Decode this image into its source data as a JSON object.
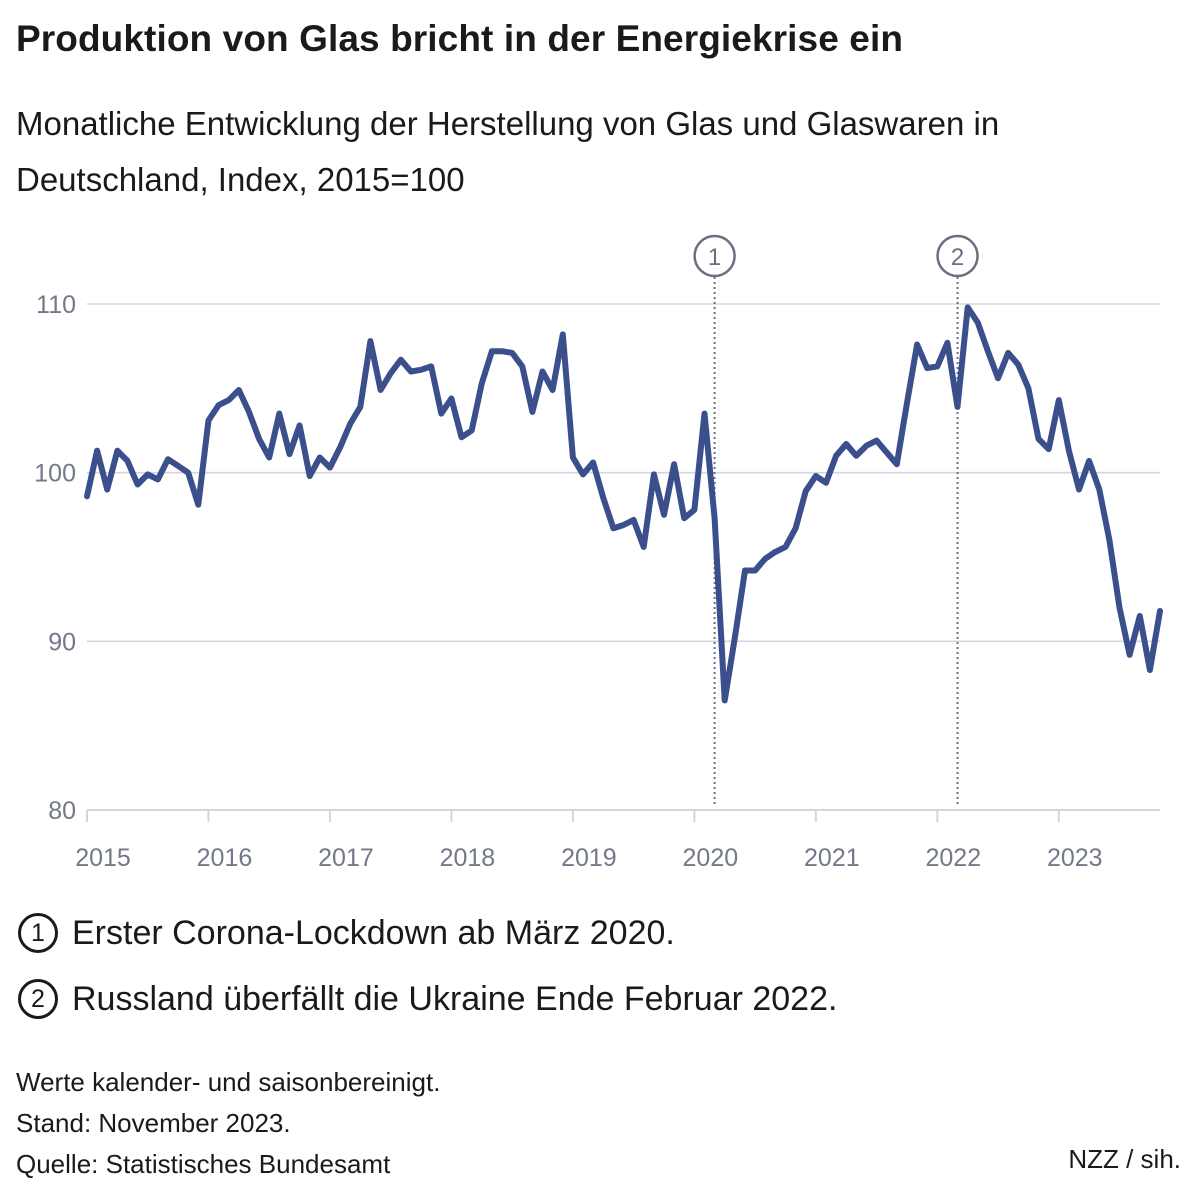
{
  "header": {
    "title": "Produktion von Glas bricht in der Energiekrise ein",
    "subtitle": "Monatliche Entwicklung der Herstellung von Glas und Glaswaren in Deutschland, Index, 2015=100"
  },
  "notes": [
    {
      "marker": "1",
      "text": "Erster Corona-Lockdown ab März 2020."
    },
    {
      "marker": "2",
      "text": "Russland überfällt die Ukraine Ende Februar 2022."
    }
  ],
  "footer": {
    "line1": "Werte kalender- und saisonbereinigt.",
    "line2": "Stand: November 2023.",
    "line3": "Quelle: Statistisches Bundesamt",
    "credit": "NZZ / sih."
  },
  "colors": {
    "line": "#3b4f8c",
    "grid": "#d4d6de",
    "axis_text": "#73788a",
    "annotation": "#6b6f80"
  },
  "chart_data": {
    "type": "line",
    "title": "Produktion von Glas bricht in der Energiekrise ein",
    "ylabel": "",
    "xlabel": "",
    "ylim": [
      80,
      110
    ],
    "y_ticks": [
      80,
      90,
      100,
      110
    ],
    "x_ticks": [
      "2015",
      "2016",
      "2017",
      "2018",
      "2019",
      "2020",
      "2021",
      "2022",
      "2023"
    ],
    "x_start": "2015-01",
    "x_end": "2023-11",
    "grid": true,
    "annotations": [
      {
        "label": "1",
        "date": "2020-03"
      },
      {
        "label": "2",
        "date": "2022-03"
      }
    ],
    "series": [
      {
        "values": [
          98.6,
          101.3,
          99.0,
          101.3,
          100.7,
          99.3,
          99.9,
          99.6,
          100.8,
          100.4,
          100.0,
          98.1,
          103.1,
          104.0,
          104.3,
          104.9,
          103.6,
          102.0,
          100.9,
          103.5,
          101.1,
          102.8,
          99.8,
          100.9,
          100.3,
          101.5,
          102.9,
          103.9,
          107.8,
          104.9,
          105.9,
          106.7,
          106.0,
          106.1,
          106.3,
          103.5,
          104.4,
          102.1,
          102.5,
          105.3,
          107.2,
          107.2,
          107.1,
          106.3,
          103.6,
          106.0,
          104.9,
          108.2,
          100.9,
          99.9,
          100.6,
          98.5,
          96.7,
          96.9,
          97.2,
          95.6,
          99.9,
          97.5,
          100.5,
          97.3,
          97.8,
          103.5,
          97.3,
          86.5,
          90.2,
          94.2,
          94.2,
          94.9,
          95.3,
          95.6,
          96.7,
          98.9,
          99.8,
          99.4,
          101.0,
          101.7,
          101.0,
          101.6,
          101.9,
          101.2,
          100.5,
          104.1,
          107.6,
          106.2,
          106.3,
          107.7,
          103.9,
          109.8,
          108.9,
          107.2,
          105.6,
          107.1,
          106.4,
          105.0,
          102.0,
          101.4,
          104.3,
          101.3,
          99.0,
          100.7,
          99.0,
          96.0,
          92.0,
          89.2,
          91.5,
          88.3,
          91.8
        ]
      }
    ]
  }
}
